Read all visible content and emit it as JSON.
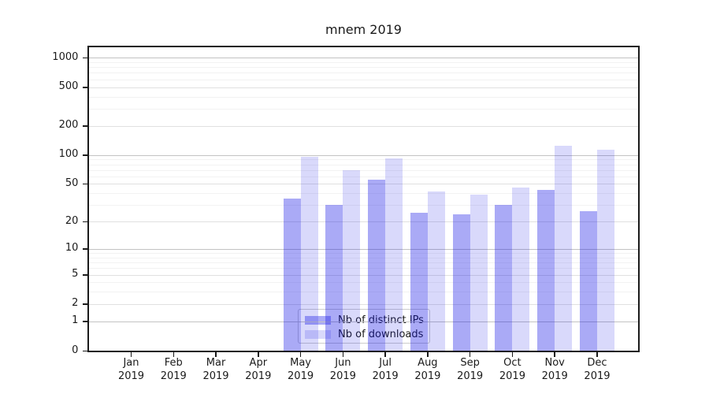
{
  "title": "mnem 2019",
  "colors": {
    "bar_base": "#1414e6",
    "distinct_ips_fill": "rgba(20,20,230,0.36)",
    "downloads_fill": "rgba(20,20,230,0.16)",
    "grid_major": "#c3c3c3",
    "grid_mid": "#e0e0e0",
    "grid_minor": "#f2f2f2",
    "axis": "#1a1a1a"
  },
  "legend": {
    "items": [
      {
        "label": "Nb of distinct IPs",
        "fill": "rgba(20,20,230,0.36)"
      },
      {
        "label": "Nb of downloads",
        "fill": "rgba(20,20,230,0.16)"
      }
    ]
  },
  "chart_data": {
    "type": "bar",
    "title": "mnem 2019",
    "categories": [
      "Jan",
      "Feb",
      "Mar",
      "Apr",
      "May",
      "Jun",
      "Jul",
      "Aug",
      "Sep",
      "Oct",
      "Nov",
      "Dec"
    ],
    "category_year": "2019",
    "series": [
      {
        "name": "Nb of distinct IPs",
        "values": [
          0,
          0,
          0,
          0,
          35,
          30,
          55,
          25,
          24,
          30,
          43,
          26
        ]
      },
      {
        "name": "Nb of downloads",
        "values": [
          0,
          0,
          0,
          0,
          96,
          70,
          92,
          42,
          39,
          46,
          124,
          113
        ]
      }
    ],
    "xlabel": "",
    "ylabel": "",
    "yscale": "log1p",
    "yticks": [
      0,
      1,
      2,
      5,
      10,
      20,
      50,
      100,
      200,
      500,
      1000
    ],
    "ylim": [
      0,
      1280
    ],
    "grid": "both",
    "legend_position": "lower center"
  }
}
